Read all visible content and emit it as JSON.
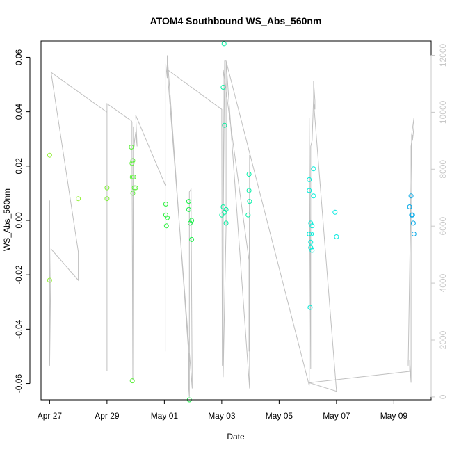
{
  "chart_data": {
    "type": "scatter",
    "title": "ATOM4 Southbound WS_Abs_560nm",
    "xlabel": "Date",
    "ylabel": "WS_Abs_560nm",
    "ylim": [
      -0.066,
      0.066
    ],
    "y_ticks": [
      -0.06,
      -0.04,
      -0.02,
      0.0,
      0.02,
      0.04,
      0.06
    ],
    "y_tick_labels": [
      "-0.06",
      "-0.04",
      "-0.02",
      "0.00",
      "0.02",
      "0.04",
      "0.06"
    ],
    "xlim": [
      -0.3,
      13.3
    ],
    "x_axis_origin": "Apr 27",
    "x_ticks": [
      0,
      2,
      4,
      6,
      8,
      10,
      12
    ],
    "x_tick_labels": [
      "Apr 27",
      "Apr 29",
      "May 01",
      "May 03",
      "May 05",
      "May 07",
      "May 09"
    ],
    "right_axis": {
      "ylim": [
        -100,
        12500
      ],
      "ticks": [
        0,
        2000,
        4000,
        6000,
        8000,
        10000,
        12000
      ],
      "tick_labels": [
        "0",
        "2000",
        "4000",
        "6000",
        "8000",
        "10000",
        "12000"
      ],
      "color": "#c8c8c8"
    },
    "points_color_scale": [
      "#93f037",
      "#00ff4a",
      "#00ffd7",
      "#00c0ff",
      "#00a0e8"
    ],
    "scatter": [
      {
        "x": 0.0,
        "y": 0.024,
        "color": "#93f037"
      },
      {
        "x": 0.0,
        "y": -0.022,
        "color": "#93f037"
      },
      {
        "x": 1.0,
        "y": 0.008,
        "color": "#93f037"
      },
      {
        "x": 2.0,
        "y": 0.012,
        "color": "#7ff037"
      },
      {
        "x": 2.0,
        "y": 0.008,
        "color": "#7ff037"
      },
      {
        "x": 2.85,
        "y": 0.027,
        "color": "#5cf03b"
      },
      {
        "x": 2.87,
        "y": 0.021,
        "color": "#5cf03b"
      },
      {
        "x": 2.9,
        "y": 0.022,
        "color": "#5cf03b"
      },
      {
        "x": 2.88,
        "y": 0.016,
        "color": "#5cf03b"
      },
      {
        "x": 2.93,
        "y": 0.016,
        "color": "#5cf03b"
      },
      {
        "x": 2.95,
        "y": 0.012,
        "color": "#5cf03b"
      },
      {
        "x": 3.0,
        "y": 0.012,
        "color": "#5cf03b"
      },
      {
        "x": 2.9,
        "y": 0.01,
        "color": "#5cf03b"
      },
      {
        "x": 2.88,
        "y": -0.059,
        "color": "#5cf03b"
      },
      {
        "x": 4.05,
        "y": 0.006,
        "color": "#2df03f"
      },
      {
        "x": 4.05,
        "y": 0.002,
        "color": "#2df03f"
      },
      {
        "x": 4.1,
        "y": 0.001,
        "color": "#2df03f"
      },
      {
        "x": 4.07,
        "y": -0.002,
        "color": "#2df03f"
      },
      {
        "x": 4.85,
        "y": 0.007,
        "color": "#19f048"
      },
      {
        "x": 4.85,
        "y": 0.004,
        "color": "#19f048"
      },
      {
        "x": 4.95,
        "y": 0.0,
        "color": "#19f048"
      },
      {
        "x": 4.9,
        "y": -0.001,
        "color": "#19f048"
      },
      {
        "x": 4.95,
        "y": -0.007,
        "color": "#19f048"
      },
      {
        "x": 4.87,
        "y": -0.066,
        "color": "#19f048"
      },
      {
        "x": 6.08,
        "y": 0.065,
        "color": "#00f0a0"
      },
      {
        "x": 6.05,
        "y": 0.049,
        "color": "#00f0a0"
      },
      {
        "x": 6.1,
        "y": 0.035,
        "color": "#00f0a0"
      },
      {
        "x": 6.05,
        "y": 0.005,
        "color": "#00f0a0"
      },
      {
        "x": 6.15,
        "y": 0.004,
        "color": "#00f0a0"
      },
      {
        "x": 6.0,
        "y": 0.002,
        "color": "#00f0a0"
      },
      {
        "x": 6.1,
        "y": 0.003,
        "color": "#00f0a0"
      },
      {
        "x": 6.15,
        "y": -0.001,
        "color": "#00f0a0"
      },
      {
        "x": 6.95,
        "y": 0.017,
        "color": "#00f0a8"
      },
      {
        "x": 6.95,
        "y": 0.011,
        "color": "#00f0a8"
      },
      {
        "x": 6.97,
        "y": 0.007,
        "color": "#00f0a8"
      },
      {
        "x": 6.92,
        "y": 0.002,
        "color": "#00f0a8"
      },
      {
        "x": 9.05,
        "y": 0.015,
        "color": "#00ecd8"
      },
      {
        "x": 9.05,
        "y": 0.011,
        "color": "#00ecd8"
      },
      {
        "x": 9.2,
        "y": 0.019,
        "color": "#00ecd8"
      },
      {
        "x": 9.2,
        "y": 0.009,
        "color": "#00ecd8"
      },
      {
        "x": 9.1,
        "y": -0.001,
        "color": "#00ecd8"
      },
      {
        "x": 9.15,
        "y": -0.002,
        "color": "#00ecd8"
      },
      {
        "x": 9.05,
        "y": -0.005,
        "color": "#00ecd8"
      },
      {
        "x": 9.12,
        "y": -0.005,
        "color": "#00ecd8"
      },
      {
        "x": 9.1,
        "y": -0.008,
        "color": "#00ecd8"
      },
      {
        "x": 9.1,
        "y": -0.01,
        "color": "#00ecd8"
      },
      {
        "x": 9.15,
        "y": -0.011,
        "color": "#00ecd8"
      },
      {
        "x": 9.08,
        "y": -0.032,
        "color": "#00ecd8"
      },
      {
        "x": 9.95,
        "y": 0.003,
        "color": "#00e8e0"
      },
      {
        "x": 10.0,
        "y": -0.006,
        "color": "#00e8e0"
      },
      {
        "x": 12.6,
        "y": 0.009,
        "color": "#00a8e8"
      },
      {
        "x": 12.55,
        "y": 0.005,
        "color": "#00a8e8"
      },
      {
        "x": 12.65,
        "y": 0.002,
        "color": "#00a8e8"
      },
      {
        "x": 12.62,
        "y": 0.002,
        "color": "#00a8e8"
      },
      {
        "x": 12.68,
        "y": -0.001,
        "color": "#00a8e8"
      },
      {
        "x": 12.7,
        "y": -0.005,
        "color": "#00a8e8"
      }
    ],
    "series": [
      {
        "axis": "right",
        "color": "#c0c0c0",
        "x": [
          0.0,
          0.0,
          0.05,
          1.0,
          1.0,
          0.05,
          2.0,
          2.0,
          2.0,
          2.0,
          2.85,
          2.87,
          2.87,
          2.9,
          2.92,
          2.92,
          2.95,
          2.95,
          3.0,
          3.0,
          3.05,
          3.0,
          4.05,
          4.05,
          4.05,
          4.1,
          4.1,
          4.85,
          4.85,
          4.87,
          4.87,
          4.93,
          4.95,
          4.97,
          4.1,
          6.0,
          6.0,
          6.02,
          6.05,
          6.1,
          6.15,
          6.15,
          6.05,
          6.05,
          6.95,
          6.95,
          6.97,
          6.97,
          6.15,
          9.0,
          9.05,
          9.05,
          9.1,
          9.1,
          9.15,
          9.2,
          9.2,
          9.25,
          9.25,
          9.2,
          10.0,
          9.05,
          12.55,
          12.55,
          12.6,
          12.6,
          12.65,
          12.65,
          12.7,
          12.7,
          12.62,
          12.62,
          12.5,
          12.5
        ],
        "y": [
          6900,
          1100,
          5200,
          4100,
          5100,
          11400,
          10000,
          900,
          10300,
          10300,
          9700,
          9650,
          9000,
          600,
          9300,
          9500,
          8800,
          8900,
          9300,
          9300,
          8800,
          9900,
          7400,
          1600,
          11700,
          11200,
          12000,
          1500,
          300,
          0,
          7200,
          7300,
          3400,
          300,
          11500,
          10100,
          9400,
          1100,
          6000,
          11800,
          11800,
          6000,
          700,
          11500,
          4800,
          1600,
          8500,
          300,
          11800,
          600,
          400,
          9800,
          1000,
          8800,
          9000,
          10500,
          11100,
          10400,
          10100,
          10400,
          200,
          500,
          900,
          1300,
          500,
          8800,
          9200,
          9000,
          9500,
          9800,
          9200,
          8800,
          1100,
          1300
        ]
      }
    ]
  }
}
